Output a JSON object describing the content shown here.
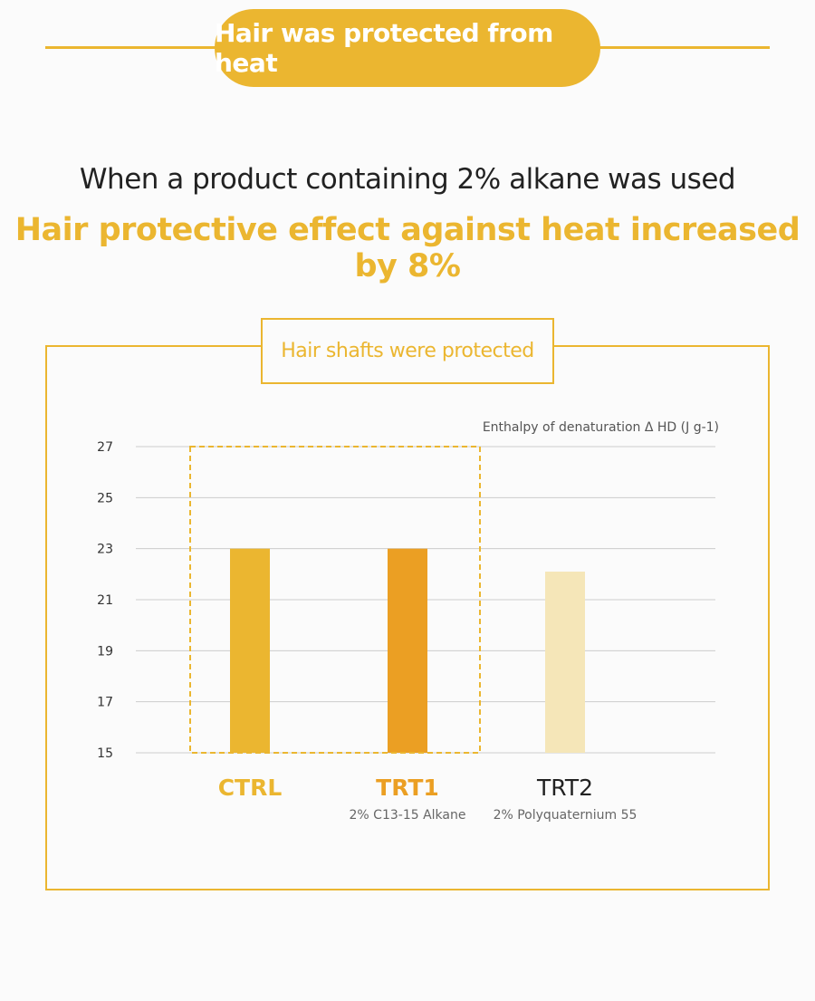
{
  "header": {
    "title": "Hair was protected from heat"
  },
  "subheadline": "When a product containing 2% alkane was used",
  "headline": "Hair protective effect against heat increased by 8%",
  "chart_box_label": "Hair shafts were protected",
  "colors": {
    "accent": "#ebb630",
    "ctrl": "#ebb630",
    "trt1": "#eb9f23",
    "trt2": "#f5e6b8",
    "grid": "#cccccc",
    "text_dark": "#333333"
  },
  "chart_data": {
    "type": "bar",
    "title": "",
    "ylabel": "Enthalpy of denaturation Δ HD (J g-1)",
    "xlabel": "",
    "ylim": [
      15,
      27
    ],
    "yticks": [
      27,
      25,
      23,
      21,
      19,
      17,
      15
    ],
    "grid": true,
    "categories": [
      "CTRL",
      "TRT1",
      "TRT2"
    ],
    "category_sublabels": [
      "",
      "2% C13-15 Alkane",
      "2% Polyquaternium 55"
    ],
    "values": [
      23,
      23,
      22.1
    ],
    "highlighted_categories": [
      "CTRL",
      "TRT1"
    ]
  }
}
